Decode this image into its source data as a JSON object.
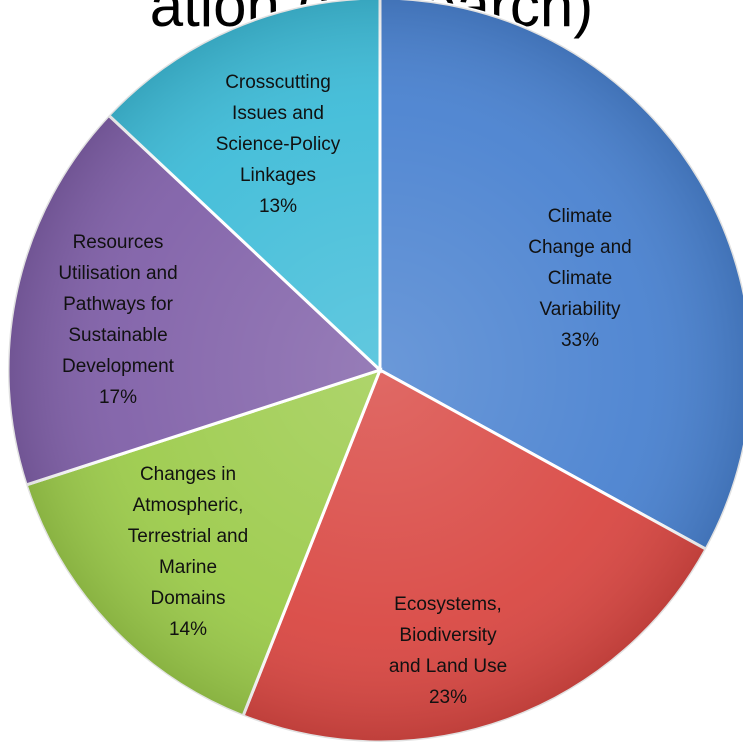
{
  "title_partial": "ation (Research)",
  "chart_data": {
    "type": "pie",
    "title": "",
    "slices": [
      {
        "label": [
          "Climate",
          "Change and",
          "Climate",
          "Variability"
        ],
        "pct_label": "33%",
        "value": 33,
        "color": "#4a82d0"
      },
      {
        "label": [
          "Ecosystems,",
          "Biodiversity",
          "and Land Use"
        ],
        "pct_label": "23%",
        "value": 23,
        "color": "#d94843"
      },
      {
        "label": [
          "Changes in",
          "Atmospheric,",
          "Terrestrial and",
          "Marine",
          "Domains"
        ],
        "pct_label": "14%",
        "value": 14,
        "color": "#9ccb4b"
      },
      {
        "label": [
          "Resources",
          "Utilisation and",
          "Pathways for",
          "Sustainable",
          "Development"
        ],
        "pct_label": "17%",
        "value": 17,
        "color": "#8060a8"
      },
      {
        "label": [
          "Crosscutting",
          "Issues and",
          "Science-Policy",
          "Linkages"
        ],
        "pct_label": "13%",
        "value": 13,
        "color": "#3fbcd8"
      }
    ]
  }
}
